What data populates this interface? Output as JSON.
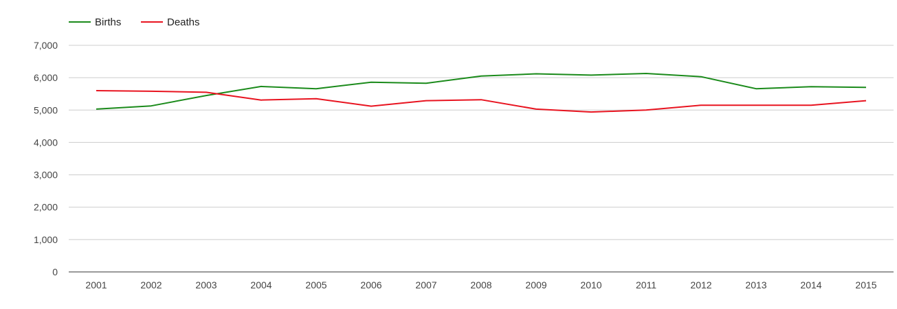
{
  "chart_data": {
    "type": "line",
    "title": "",
    "xlabel": "",
    "ylabel": "",
    "x": [
      "2001",
      "2002",
      "2003",
      "2004",
      "2005",
      "2006",
      "2007",
      "2008",
      "2009",
      "2010",
      "2011",
      "2012",
      "2013",
      "2014",
      "2015"
    ],
    "ylim": [
      0,
      7000
    ],
    "yticks": [
      "0",
      "1,000",
      "2,000",
      "3,000",
      "4,000",
      "5,000",
      "6,000",
      "7,000"
    ],
    "grid": true,
    "legend_position": "top-left",
    "series": [
      {
        "name": "Births",
        "color": "#1a8a1a",
        "values": [
          5030,
          5130,
          5450,
          5730,
          5660,
          5860,
          5830,
          6050,
          6120,
          6080,
          6130,
          6030,
          5660,
          5720,
          5700
        ]
      },
      {
        "name": "Deaths",
        "color": "#e8131f",
        "values": [
          5600,
          5580,
          5550,
          5310,
          5350,
          5120,
          5290,
          5320,
          5030,
          4940,
          5000,
          5150,
          5150,
          5150,
          5290
        ]
      }
    ]
  }
}
